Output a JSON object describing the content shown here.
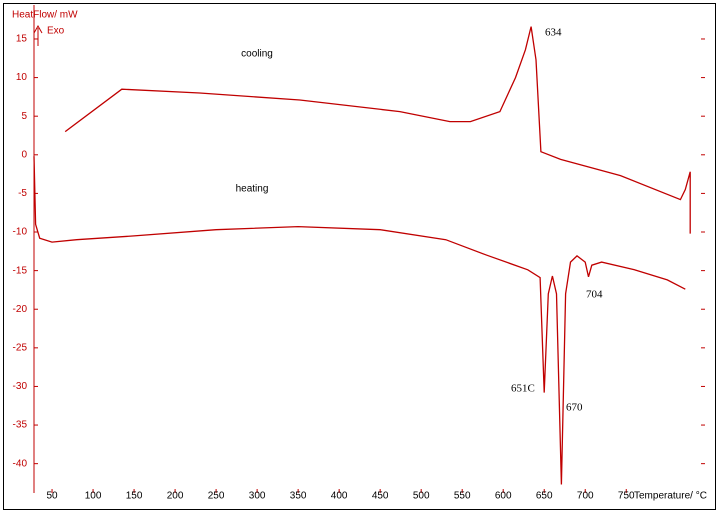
{
  "chart_data": {
    "type": "line",
    "y_label": "HeatFlow/ mW",
    "exo_label": "Exo",
    "x_label": "Temperature/ °C",
    "xlim": [
      28,
      846
    ],
    "ylim": [
      -43.8,
      19.4
    ],
    "xticks": [
      50,
      100,
      150,
      200,
      250,
      300,
      350,
      400,
      450,
      500,
      550,
      600,
      650,
      700,
      750
    ],
    "yticks": [
      15,
      10,
      5,
      0,
      -5,
      -10,
      -15,
      -20,
      -25,
      -30,
      -35,
      -40
    ],
    "series": [
      {
        "name": "cooling",
        "color": "#c00000",
        "x": [
          66,
          135,
          230,
          352,
          474,
          535,
          560,
          596,
          615,
          627,
          634,
          640,
          646,
          670,
          743,
          816,
          822,
          828,
          828
        ],
        "values": [
          3.0,
          8.5,
          8.0,
          7.1,
          5.6,
          4.3,
          4.3,
          5.6,
          10,
          13.6,
          16.6,
          12.3,
          0.4,
          -0.6,
          -2.7,
          -5.8,
          -4.5,
          -2.2,
          -10.2
        ]
      },
      {
        "name": "heating",
        "color": "#c00000",
        "x": [
          28,
          30,
          35,
          50,
          80,
          150,
          250,
          350,
          450,
          530,
          580,
          630,
          645,
          650,
          655,
          660,
          665,
          671,
          676,
          682,
          690,
          700,
          704,
          708,
          720,
          760,
          800,
          822
        ],
        "values": [
          -0.2,
          -9,
          -10.8,
          -11.3,
          -11,
          -10.5,
          -9.7,
          -9.3,
          -9.7,
          -11,
          -13,
          -14.9,
          -15.9,
          -30.8,
          -18,
          -15.7,
          -18,
          -42.7,
          -18,
          -13.9,
          -13.1,
          -13.9,
          -15.8,
          -14.3,
          -13.9,
          -14.9,
          -16.2,
          -17.4
        ]
      }
    ],
    "annotations": [
      "634",
      "651C",
      "670",
      "704"
    ]
  }
}
